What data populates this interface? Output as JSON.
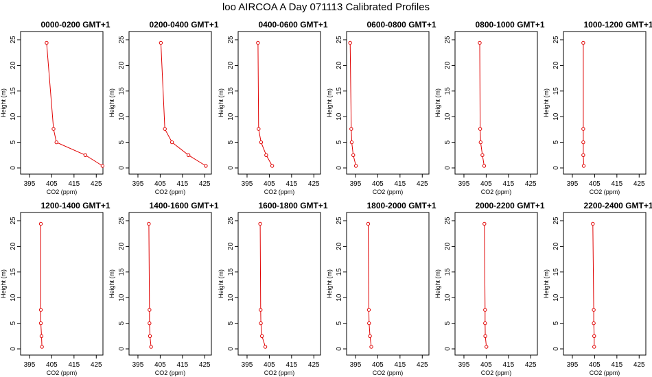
{
  "title": "loo AIRCOA A  Day 071113  Calibrated Profiles",
  "colors": {
    "series": "#e00000",
    "axis": "#000000"
  },
  "chart_data": [
    {
      "type": "line",
      "title": "0000-0200 GMT+1",
      "xlabel": "CO2 (ppm)",
      "ylabel": "Height (m)",
      "xlim": [
        391,
        428
      ],
      "ylim": [
        0,
        25
      ],
      "xticks": [
        395,
        405,
        415,
        425
      ],
      "yticks": [
        0,
        5,
        10,
        15,
        20,
        25
      ],
      "series": [
        {
          "x": [
            402.7,
            405.8,
            407.1,
            420.1,
            427.8
          ],
          "y": [
            24.4,
            7.6,
            5.0,
            2.5,
            0.4
          ]
        }
      ]
    },
    {
      "type": "line",
      "title": "0200-0400 GMT+1",
      "xlabel": "CO2 (ppm)",
      "ylabel": "Height (m)",
      "xlim": [
        391,
        428
      ],
      "ylim": [
        0,
        25
      ],
      "xticks": [
        395,
        405,
        415,
        425
      ],
      "yticks": [
        0,
        5,
        10,
        15,
        20,
        25
      ],
      "series": [
        {
          "x": [
            405.3,
            407.1,
            410.3,
            417.7,
            425.5
          ],
          "y": [
            24.4,
            7.6,
            5.0,
            2.5,
            0.4
          ]
        }
      ]
    },
    {
      "type": "line",
      "title": "0400-0600 GMT+1",
      "xlabel": "CO2 (ppm)",
      "ylabel": "Height (m)",
      "xlim": [
        391,
        428
      ],
      "ylim": [
        0,
        25
      ],
      "xticks": [
        395,
        405,
        415,
        425
      ],
      "yticks": [
        0,
        5,
        10,
        15,
        20,
        25
      ],
      "series": [
        {
          "x": [
            399.9,
            400.2,
            401.3,
            403.6,
            406.3
          ],
          "y": [
            24.4,
            7.6,
            5.0,
            2.5,
            0.4
          ]
        }
      ]
    },
    {
      "type": "line",
      "title": "0600-0800 GMT+1",
      "xlabel": "CO2 (ppm)",
      "ylabel": "Height (m)",
      "xlim": [
        391,
        428
      ],
      "ylim": [
        0,
        25
      ],
      "xticks": [
        395,
        405,
        415,
        425
      ],
      "yticks": [
        0,
        5,
        10,
        15,
        20,
        25
      ],
      "series": [
        {
          "x": [
            392.6,
            393.1,
            393.3,
            394.0,
            395.2
          ],
          "y": [
            24.4,
            7.6,
            5.0,
            2.5,
            0.4
          ]
        }
      ]
    },
    {
      "type": "line",
      "title": "0800-1000 GMT+1",
      "xlabel": "CO2 (ppm)",
      "ylabel": "Height (m)",
      "xlim": [
        391,
        428
      ],
      "ylim": [
        0,
        25
      ],
      "xticks": [
        395,
        405,
        415,
        425
      ],
      "yticks": [
        0,
        5,
        10,
        15,
        20,
        25
      ],
      "series": [
        {
          "x": [
            402.1,
            402.3,
            402.5,
            403.3,
            404.1
          ],
          "y": [
            24.4,
            7.6,
            5.0,
            2.5,
            0.4
          ]
        }
      ]
    },
    {
      "type": "line",
      "title": "1000-1200 GMT+1",
      "xlabel": "CO2 (ppm)",
      "ylabel": "Height (m)",
      "xlim": [
        391,
        428
      ],
      "ylim": [
        0,
        25
      ],
      "xticks": [
        395,
        405,
        415,
        425
      ],
      "yticks": [
        0,
        5,
        10,
        15,
        20,
        25
      ],
      "series": [
        {
          "x": [
            399.9,
            399.9,
            399.9,
            399.9,
            400.1
          ],
          "y": [
            24.4,
            7.6,
            5.0,
            2.5,
            0.4
          ]
        }
      ]
    },
    {
      "type": "line",
      "title": "1200-1400 GMT+1",
      "xlabel": "CO2 (ppm)",
      "ylabel": "Height (m)",
      "xlim": [
        391,
        428
      ],
      "ylim": [
        0,
        25
      ],
      "xticks": [
        395,
        405,
        415,
        425
      ],
      "yticks": [
        0,
        5,
        10,
        15,
        20,
        25
      ],
      "series": [
        {
          "x": [
            400.1,
            400.1,
            400.1,
            400.4,
            400.6
          ],
          "y": [
            24.4,
            7.6,
            5.0,
            2.5,
            0.4
          ]
        }
      ]
    },
    {
      "type": "line",
      "title": "1400-1600 GMT+1",
      "xlabel": "CO2 (ppm)",
      "ylabel": "Height (m)",
      "xlim": [
        391,
        428
      ],
      "ylim": [
        0,
        25
      ],
      "xticks": [
        395,
        405,
        415,
        425
      ],
      "yticks": [
        0,
        5,
        10,
        15,
        20,
        25
      ],
      "series": [
        {
          "x": [
            399.9,
            400.2,
            400.2,
            400.4,
            400.9
          ],
          "y": [
            24.4,
            7.6,
            5.0,
            2.5,
            0.4
          ]
        }
      ]
    },
    {
      "type": "line",
      "title": "1600-1800 GMT+1",
      "xlabel": "CO2 (ppm)",
      "ylabel": "Height (m)",
      "xlim": [
        391,
        428
      ],
      "ylim": [
        0,
        25
      ],
      "xticks": [
        395,
        405,
        415,
        425
      ],
      "yticks": [
        0,
        5,
        10,
        15,
        20,
        25
      ],
      "series": [
        {
          "x": [
            400.9,
            401.1,
            401.2,
            401.7,
            403.2
          ],
          "y": [
            24.4,
            7.6,
            5.0,
            2.5,
            0.4
          ]
        }
      ]
    },
    {
      "type": "line",
      "title": "1800-2000 GMT+1",
      "xlabel": "CO2 (ppm)",
      "ylabel": "Height (m)",
      "xlim": [
        391,
        428
      ],
      "ylim": [
        0,
        25
      ],
      "xticks": [
        395,
        405,
        415,
        425
      ],
      "yticks": [
        0,
        5,
        10,
        15,
        20,
        25
      ],
      "series": [
        {
          "x": [
            400.7,
            401.0,
            401.1,
            401.5,
            402.1
          ],
          "y": [
            24.4,
            7.6,
            5.0,
            2.5,
            0.4
          ]
        }
      ]
    },
    {
      "type": "line",
      "title": "2000-2200 GMT+1",
      "xlabel": "CO2 (ppm)",
      "ylabel": "Height (m)",
      "xlim": [
        391,
        428
      ],
      "ylim": [
        0,
        25
      ],
      "xticks": [
        395,
        405,
        415,
        425
      ],
      "yticks": [
        0,
        5,
        10,
        15,
        20,
        25
      ],
      "series": [
        {
          "x": [
            404.2,
            404.5,
            404.5,
            404.6,
            405.1
          ],
          "y": [
            24.4,
            7.6,
            5.0,
            2.5,
            0.4
          ]
        }
      ]
    },
    {
      "type": "line",
      "title": "2200-2400 GMT+1",
      "xlabel": "CO2 (ppm)",
      "ylabel": "Height (m)",
      "xlim": [
        391,
        428
      ],
      "ylim": [
        0,
        25
      ],
      "xticks": [
        395,
        405,
        415,
        425
      ],
      "yticks": [
        0,
        5,
        10,
        15,
        20,
        25
      ],
      "series": [
        {
          "x": [
            404.2,
            404.6,
            404.6,
            404.8,
            404.8
          ],
          "y": [
            24.4,
            7.6,
            5.0,
            2.5,
            0.4
          ]
        }
      ]
    }
  ]
}
